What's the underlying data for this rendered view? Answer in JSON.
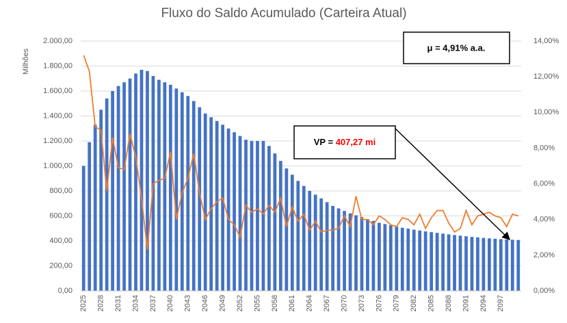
{
  "chart_data": {
    "type": "bar_line",
    "title": "Fluxo do Saldo Acumulado (Carteira Atual)",
    "y_label": "Milhões",
    "categories": [
      "2025",
      null,
      null,
      "2028",
      null,
      null,
      "2031",
      null,
      null,
      "2034",
      null,
      null,
      "2037",
      null,
      null,
      "2040",
      null,
      null,
      "2043",
      null,
      null,
      "2046",
      null,
      null,
      "2049",
      null,
      null,
      "2052",
      null,
      null,
      "2055",
      null,
      null,
      "2058",
      null,
      null,
      "2061",
      null,
      null,
      "2064",
      null,
      null,
      "2067",
      null,
      null,
      "2070",
      null,
      null,
      "2073",
      null,
      null,
      "2076",
      null,
      null,
      "2079",
      null,
      null,
      "2082",
      null,
      null,
      "2085",
      null,
      null,
      "2088",
      null,
      null,
      "2091",
      null,
      null,
      "2094",
      null,
      null,
      "2097",
      null,
      null,
      null
    ],
    "series": [
      {
        "color": "#4472c4",
        "values": [
          1000,
          1190,
          1330,
          1450,
          1540,
          1600,
          1640,
          1670,
          1700,
          1740,
          1770,
          1760,
          1720,
          1690,
          1670,
          1650,
          1620,
          1590,
          1560,
          1520,
          1470,
          1420,
          1390,
          1360,
          1330,
          1300,
          1270,
          1240,
          1210,
          1200,
          1200,
          1200,
          1160,
          1100,
          1040,
          980,
          930,
          880,
          840,
          800,
          770,
          740,
          710,
          680,
          660,
          640,
          620,
          605,
          590,
          575,
          560,
          545,
          535,
          525,
          515,
          505,
          498,
          490,
          483,
          476,
          470,
          464,
          458,
          452,
          447,
          442,
          437,
          432,
          428,
          424,
          420,
          417,
          414,
          411,
          409,
          407
        ]
      },
      {
        "color": "#ed7d31",
        "axis": "y2",
        "values": [
          13.2,
          12.3,
          9.2,
          9.0,
          5.6,
          8.6,
          6.9,
          6.8,
          8.8,
          7.5,
          5.2,
          2.3,
          6.0,
          6.2,
          6.3,
          7.8,
          4.0,
          5.5,
          6.3,
          7.7,
          5.5,
          4.0,
          4.6,
          5.0,
          5.2,
          4.0,
          3.7,
          3.0,
          4.8,
          4.4,
          4.6,
          4.3,
          4.8,
          4.4,
          5.2,
          3.6,
          4.7,
          3.9,
          4.3,
          3.4,
          3.9,
          3.3,
          3.4,
          3.4,
          3.5,
          4.2,
          3.6,
          5.3,
          4.0,
          4.0,
          3.7,
          4.2,
          4.0,
          3.7,
          3.6,
          4.1,
          4.0,
          3.7,
          4.3,
          3.5,
          4.1,
          4.5,
          4.5,
          3.8,
          3.3,
          3.5,
          4.5,
          3.7,
          4.2,
          4.3,
          4.4,
          4.2,
          4.1,
          3.6,
          4.3,
          4.2
        ]
      }
    ],
    "ylim": [
      0,
      2000
    ],
    "yticks": [
      {
        "value": 0,
        "label": "0,00"
      },
      {
        "value": 200,
        "label": "200,00"
      },
      {
        "value": 400,
        "label": "400,00"
      },
      {
        "value": 600,
        "label": "600,00"
      },
      {
        "value": 800,
        "label": "800,00"
      },
      {
        "value": 1000,
        "label": "1.000,00"
      },
      {
        "value": 1200,
        "label": "1.200,00"
      },
      {
        "value": 1400,
        "label": "1.400,00"
      },
      {
        "value": 1600,
        "label": "1.600,00"
      },
      {
        "value": 1800,
        "label": "1.800,00"
      },
      {
        "value": 2000,
        "label": "2.000,00"
      }
    ],
    "y2lim": [
      0,
      14
    ],
    "y2ticks": [
      {
        "value": 0,
        "label": "0,00%"
      },
      {
        "value": 2,
        "label": "2,00%"
      },
      {
        "value": 4,
        "label": "4,00%"
      },
      {
        "value": 6,
        "label": "6,00%"
      },
      {
        "value": 8,
        "label": "8,00%"
      },
      {
        "value": 10,
        "label": "10,00%"
      },
      {
        "value": 12,
        "label": "12,00%"
      },
      {
        "value": 14,
        "label": "14,00%"
      }
    ],
    "grid": true,
    "annotations": [
      "μ = 4,91% a.a.",
      "VP =",
      "407,27 mi"
    ],
    "annotation_highlight_color": "#ff0000"
  }
}
